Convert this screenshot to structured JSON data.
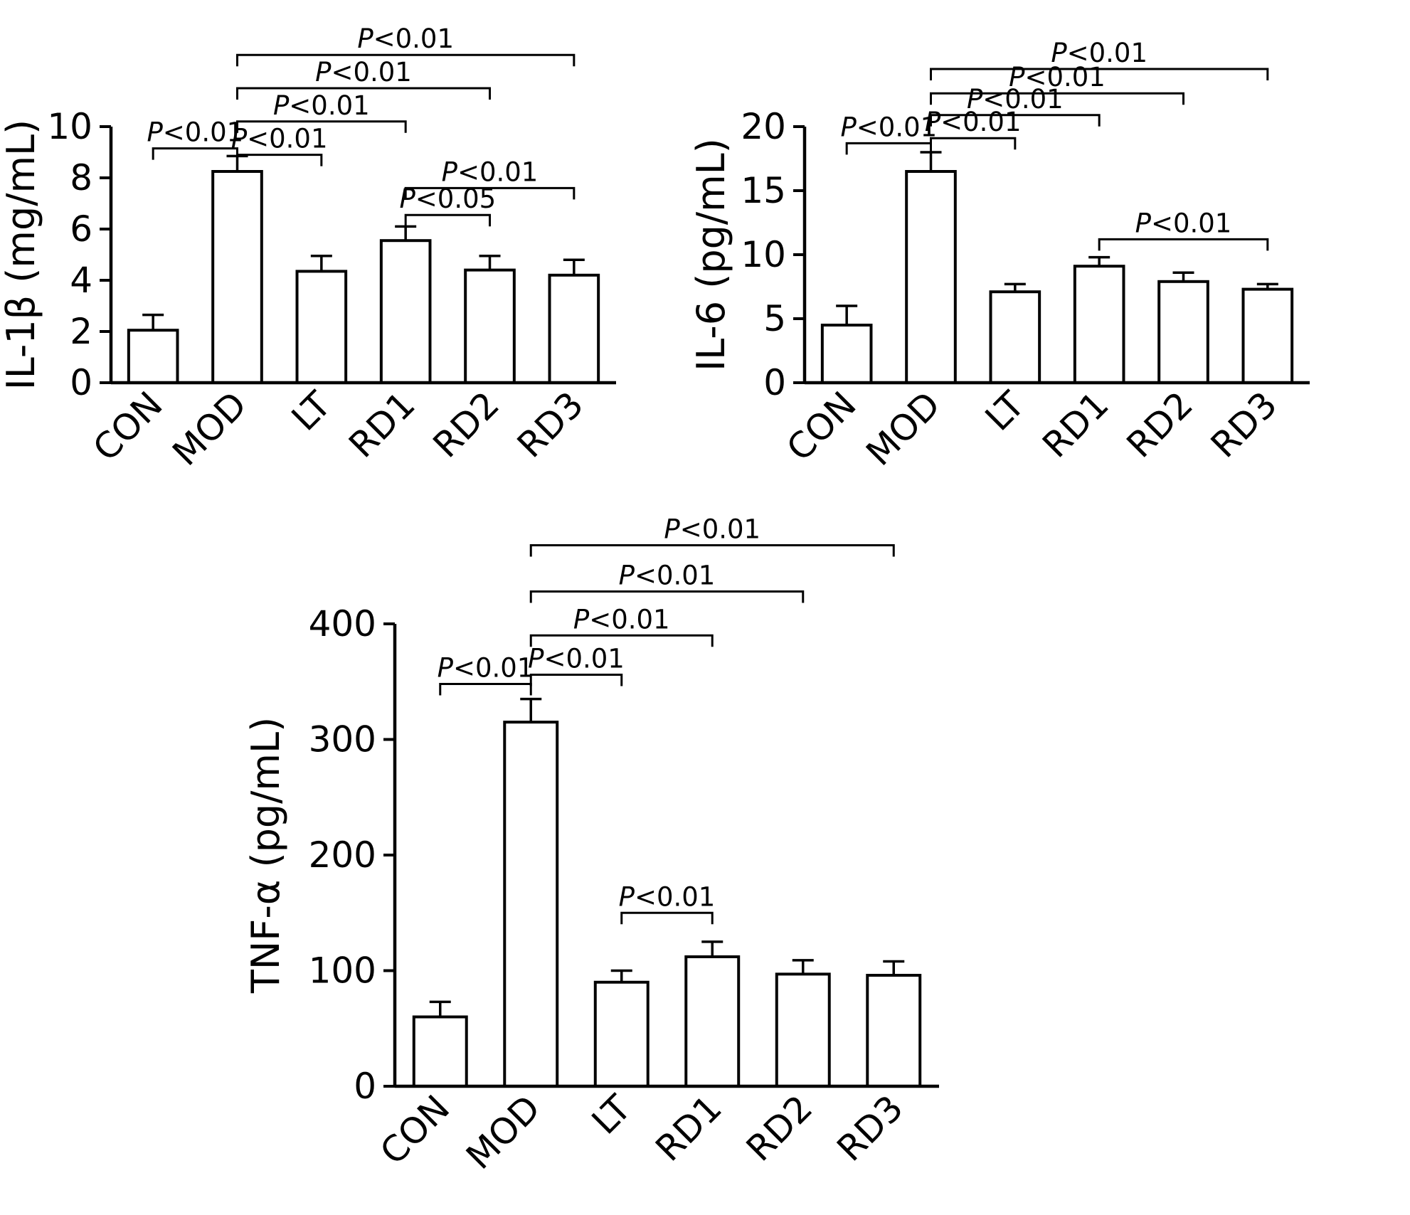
{
  "figure": {
    "colors": {
      "background": "#ffffff",
      "bar_fill": "#ffffff",
      "stroke": "#000000"
    }
  },
  "chart_data": [
    {
      "type": "bar",
      "ylabel": "IL-1β (mg/mL)",
      "categories": [
        "CON",
        "MOD",
        "LT",
        "RD1",
        "RD2",
        "RD3"
      ],
      "values": [
        2.05,
        8.25,
        4.35,
        5.55,
        4.4,
        4.2
      ],
      "errors": [
        0.6,
        0.6,
        0.6,
        0.55,
        0.55,
        0.6
      ],
      "ylim": [
        0,
        10
      ],
      "yticks": [
        0,
        2,
        4,
        6,
        8,
        10
      ],
      "grid": false,
      "legend": false,
      "brackets": [
        {
          "from": 0,
          "to": 1,
          "label": "P<0.01",
          "y": 9.15
        },
        {
          "from": 1,
          "to": 2,
          "label": "P<0.01",
          "y": 8.9
        },
        {
          "from": 1,
          "to": 3,
          "label": "P<0.01",
          "y": 10.2
        },
        {
          "from": 1,
          "to": 4,
          "label": "P<0.01",
          "y": 11.5
        },
        {
          "from": 1,
          "to": 5,
          "label": "P<0.01",
          "y": 12.8
        },
        {
          "from": 3,
          "to": 4,
          "label": "P<0.05",
          "y": 6.55
        },
        {
          "from": 3,
          "to": 5,
          "label": "P<0.01",
          "y": 7.6
        }
      ]
    },
    {
      "type": "bar",
      "ylabel": "IL-6 (pg/mL)",
      "categories": [
        "CON",
        "MOD",
        "LT",
        "RD1",
        "RD2",
        "RD3"
      ],
      "values": [
        4.5,
        16.5,
        7.1,
        9.1,
        7.9,
        7.3
      ],
      "errors": [
        1.5,
        1.5,
        0.6,
        0.7,
        0.7,
        0.4
      ],
      "ylim": [
        0,
        20
      ],
      "yticks": [
        0,
        5,
        10,
        15,
        20
      ],
      "grid": false,
      "legend": false,
      "brackets": [
        {
          "from": 0,
          "to": 1,
          "label": "P<0.01",
          "y": 18.7
        },
        {
          "from": 1,
          "to": 2,
          "label": "P<0.01",
          "y": 19.1
        },
        {
          "from": 1,
          "to": 3,
          "label": "P<0.01",
          "y": 20.9
        },
        {
          "from": 1,
          "to": 4,
          "label": "P<0.01",
          "y": 22.6
        },
        {
          "from": 1,
          "to": 5,
          "label": "P<0.01",
          "y": 24.5
        },
        {
          "from": 3,
          "to": 5,
          "label": "P<0.01",
          "y": 11.2
        }
      ]
    },
    {
      "type": "bar",
      "ylabel": "TNF-α (pg/mL)",
      "categories": [
        "CON",
        "MOD",
        "LT",
        "RD1",
        "RD2",
        "RD3"
      ],
      "values": [
        60,
        315,
        90,
        112,
        97,
        96
      ],
      "errors": [
        13,
        20,
        10,
        13,
        12,
        12
      ],
      "ylim": [
        0,
        400
      ],
      "yticks": [
        0,
        100,
        200,
        300,
        400
      ],
      "grid": false,
      "legend": false,
      "brackets": [
        {
          "from": 0,
          "to": 1,
          "label": "P<0.01",
          "y": 348
        },
        {
          "from": 1,
          "to": 2,
          "label": "P<0.01",
          "y": 356
        },
        {
          "from": 1,
          "to": 3,
          "label": "P<0.01",
          "y": 390
        },
        {
          "from": 1,
          "to": 4,
          "label": "P<0.01",
          "y": 428
        },
        {
          "from": 1,
          "to": 5,
          "label": "P<0.01",
          "y": 468
        },
        {
          "from": 2,
          "to": 3,
          "label": "P<0.01",
          "y": 150
        }
      ]
    }
  ]
}
